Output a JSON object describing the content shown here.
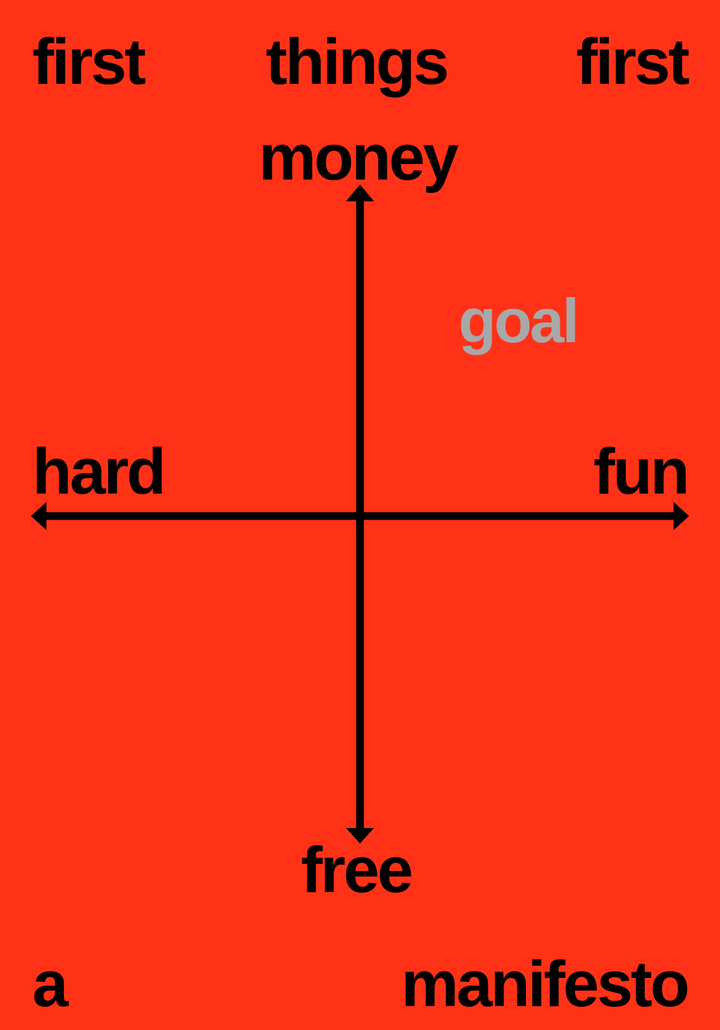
{
  "header": {
    "word_left": "first",
    "word_center": "things",
    "word_right": "first"
  },
  "axes": {
    "top": "money",
    "bottom": "free",
    "left": "hard",
    "right": "fun"
  },
  "marker": {
    "label": "goal"
  },
  "footer": {
    "word_left": "a",
    "word_right": "manifesto"
  },
  "colors": {
    "background": "#ff3217",
    "text": "#000000",
    "goal": "#a8a8a8"
  }
}
